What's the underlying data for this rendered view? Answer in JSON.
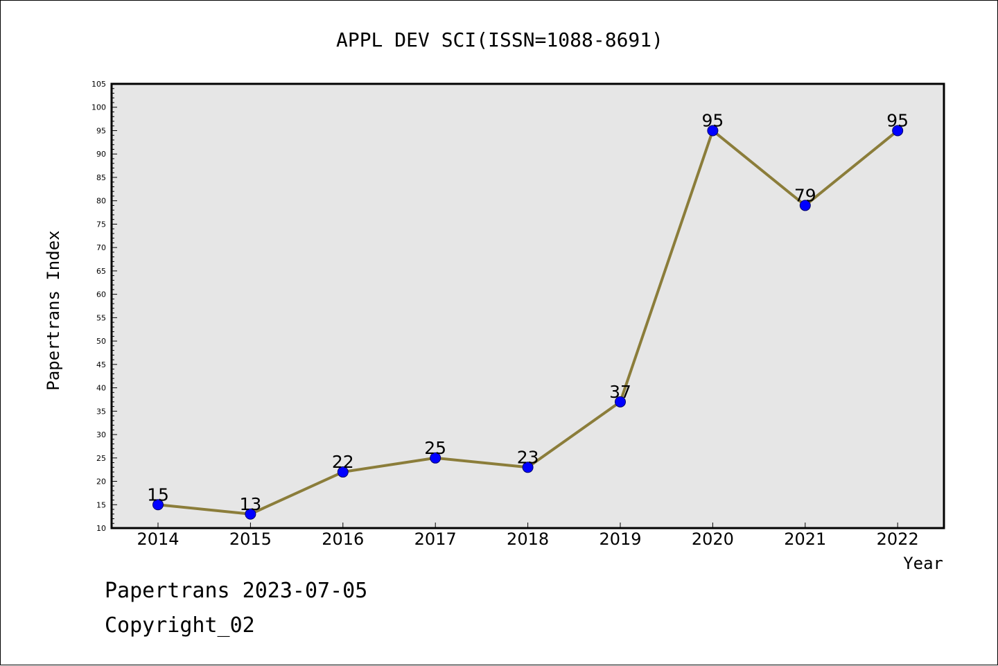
{
  "chart_data": {
    "type": "line",
    "title": "APPL DEV SCI(ISSN=1088-8691)",
    "xlabel": "Year",
    "ylabel": "Papertrans Index",
    "categories": [
      "2014",
      "2015",
      "2016",
      "2017",
      "2018",
      "2019",
      "2020",
      "2021",
      "2022"
    ],
    "series": [
      {
        "values": [
          15,
          13,
          22,
          25,
          23,
          37,
          95,
          79,
          95
        ]
      }
    ],
    "data_labels": [
      "15",
      "13",
      "22",
      "25",
      "23",
      "37",
      "95",
      "79",
      "95"
    ],
    "ylim": [
      10,
      105
    ],
    "yticks": [
      10,
      15,
      20,
      25,
      30,
      35,
      40,
      45,
      50,
      55,
      60,
      65,
      70,
      75,
      80,
      85,
      90,
      95,
      100,
      105
    ],
    "grid": false,
    "legend": "none"
  },
  "footer": {
    "line1": "Papertrans 2023-07-05",
    "line2": "Copyright_02"
  },
  "colors": {
    "plot_background": "#e6e6e6",
    "line": "#8b7d3a",
    "marker": "#0000ff",
    "axis": "#000000"
  }
}
